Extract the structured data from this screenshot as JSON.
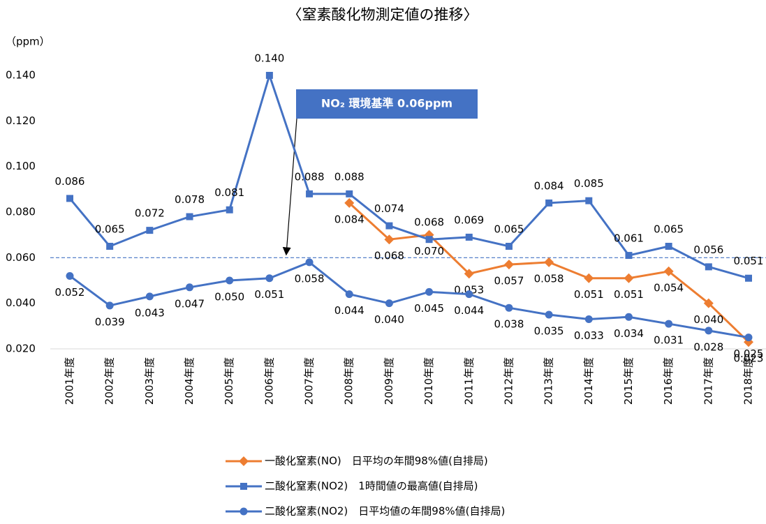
{
  "chart_data": {
    "type": "line",
    "title": "〈窒素酸化物測定値の推移〉",
    "y_unit": "（ppm）",
    "annotation": "NO₂ 環境基準 0.06ppm",
    "reference_line": 0.06,
    "categories": [
      "2001年度",
      "2002年度",
      "2003年度",
      "2004年度",
      "2005年度",
      "2006年度",
      "2007年度",
      "2008年度",
      "2009年度",
      "2010年度",
      "2011年度",
      "2012年度",
      "2013年度",
      "2014年度",
      "2015年度",
      "2016年度",
      "2017年度",
      "2018年度"
    ],
    "series": [
      {
        "name": "一酸化窒素(NO)　日平均の年間98%値(自排局)",
        "color": "#ed7d31",
        "marker": "diamond",
        "values": [
          null,
          null,
          null,
          null,
          null,
          null,
          null,
          0.084,
          0.068,
          0.07,
          0.053,
          0.057,
          0.058,
          0.051,
          0.051,
          0.054,
          0.04,
          0.023
        ],
        "value_labels": [
          null,
          null,
          null,
          null,
          null,
          null,
          null,
          "0.084",
          "0.068",
          "0.070",
          "0.053",
          "0.057",
          "0.058",
          "0.051",
          "0.051",
          "0.054",
          "0.040",
          "0.023"
        ]
      },
      {
        "name": "二酸化窒素(NO2)　1時間値の最高値(自排局)",
        "color": "#4472c4",
        "marker": "square",
        "values": [
          0.086,
          0.065,
          0.072,
          0.078,
          0.081,
          0.14,
          0.088,
          0.088,
          0.074,
          0.068,
          0.069,
          0.065,
          0.084,
          0.085,
          0.061,
          0.065,
          0.056,
          0.051
        ],
        "value_labels": [
          "0.086",
          "0.065",
          "0.072",
          "0.078",
          "0.081",
          "0.140",
          "0.088",
          "0.088",
          "0.074",
          "0.068",
          "0.069",
          "0.065",
          "0.084",
          "0.085",
          "0.061",
          "0.065",
          "0.056",
          "0.051"
        ]
      },
      {
        "name": "二酸化窒素(NO2)　日平均値の年間98%値(自排局)",
        "color": "#4472c4",
        "marker": "circle",
        "values": [
          0.052,
          0.039,
          0.043,
          0.047,
          0.05,
          0.051,
          0.058,
          0.044,
          0.04,
          0.045,
          0.044,
          0.038,
          0.035,
          0.033,
          0.034,
          0.031,
          0.028,
          0.025
        ],
        "value_labels": [
          "0.052",
          "0.039",
          "0.043",
          "0.047",
          "0.050",
          "0.051",
          "0.058",
          "0.044",
          "0.040",
          "0.045",
          "0.044",
          "0.038",
          "0.035",
          "0.033",
          "0.034",
          "0.031",
          "0.028",
          "0.025"
        ]
      }
    ],
    "ylim": [
      0.02,
      0.14
    ],
    "yticks": [
      {
        "value": 0.02,
        "label": "0.020"
      },
      {
        "value": 0.04,
        "label": "0.040"
      },
      {
        "value": 0.06,
        "label": "0.060"
      },
      {
        "value": 0.08,
        "label": "0.080"
      },
      {
        "value": 0.1,
        "label": "0.100"
      },
      {
        "value": 0.12,
        "label": "0.120"
      },
      {
        "value": 0.14,
        "label": "0.140"
      }
    ],
    "grid": false
  }
}
